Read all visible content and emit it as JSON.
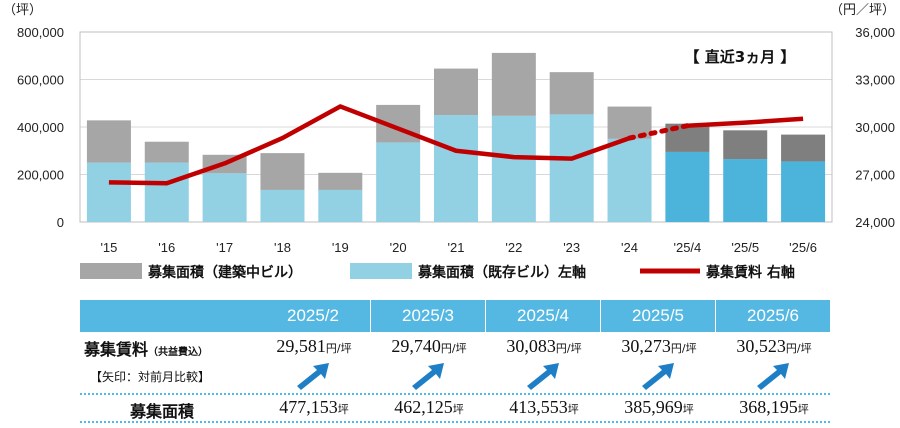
{
  "chart_data": {
    "type": "bar+line",
    "categories": [
      "'15",
      "'16",
      "'17",
      "'18",
      "'19",
      "'20",
      "'21",
      "'22",
      "'23",
      "'24",
      "'25/4",
      "'25/5",
      "'25/6"
    ],
    "series": [
      {
        "name": "募集面積（既存ビル）左軸",
        "type": "stacked-bar",
        "axis": "left",
        "color": "#92d0e4",
        "values": [
          250000,
          250000,
          205000,
          135000,
          135000,
          335000,
          450000,
          447000,
          453000,
          350000,
          295000,
          265000,
          255000
        ]
      },
      {
        "name": "募集面積（建築中ビル）",
        "type": "stacked-bar",
        "axis": "left",
        "color": "#a6a6a6",
        "values": [
          178000,
          88000,
          78000,
          155000,
          72000,
          158000,
          196000,
          265000,
          178000,
          136000,
          119000,
          121000,
          113000
        ]
      },
      {
        "name": "募集賃料 右軸",
        "type": "line",
        "axis": "right",
        "color": "#c00000",
        "values": [
          26500,
          26450,
          27700,
          29300,
          31300,
          29900,
          28500,
          28100,
          28000,
          29300,
          30083,
          30273,
          30523
        ]
      }
    ],
    "recent_bar_colors": {
      "base": "#4cb3db",
      "top": "#7f7f7f"
    },
    "left_axis": {
      "unit_label": "（坪）",
      "ylim": [
        0,
        800000
      ],
      "ticks": [
        "0",
        "200,000",
        "400,000",
        "600,000",
        "800,000"
      ]
    },
    "right_axis": {
      "unit_label": "（円／坪）",
      "ylim": [
        24000,
        36000
      ],
      "ticks": [
        "24,000",
        "27,000",
        "30,000",
        "33,000",
        "36,000"
      ]
    },
    "annotation": "【 直近3ヵ月 】",
    "grid": true,
    "legend_position": "bottom"
  },
  "legend": {
    "items": [
      {
        "label": "募集面積（建築中ビル）",
        "color": "#a6a6a6",
        "kind": "bar"
      },
      {
        "label": "募集面積（既存ビル）左軸",
        "color": "#92d0e4",
        "kind": "bar"
      },
      {
        "label": "募集賃料 右軸",
        "color": "#c00000",
        "kind": "line"
      }
    ]
  },
  "table": {
    "months": [
      "2025/2",
      "2025/3",
      "2025/4",
      "2025/5",
      "2025/6"
    ],
    "rent_label": "募集賃料",
    "rent_label_note": "（共益費込）",
    "arrow_label": "【矢印：対前月比較】",
    "area_label": "募集面積",
    "rent_values": [
      "29,581",
      "29,740",
      "30,083",
      "30,273",
      "30,523"
    ],
    "rent_unit": "円/坪",
    "area_values": [
      "477,153",
      "462,125",
      "413,553",
      "385,969",
      "368,195"
    ],
    "area_unit": "坪",
    "arrow_direction": "up",
    "arrow_color": "#1f7fc6"
  }
}
